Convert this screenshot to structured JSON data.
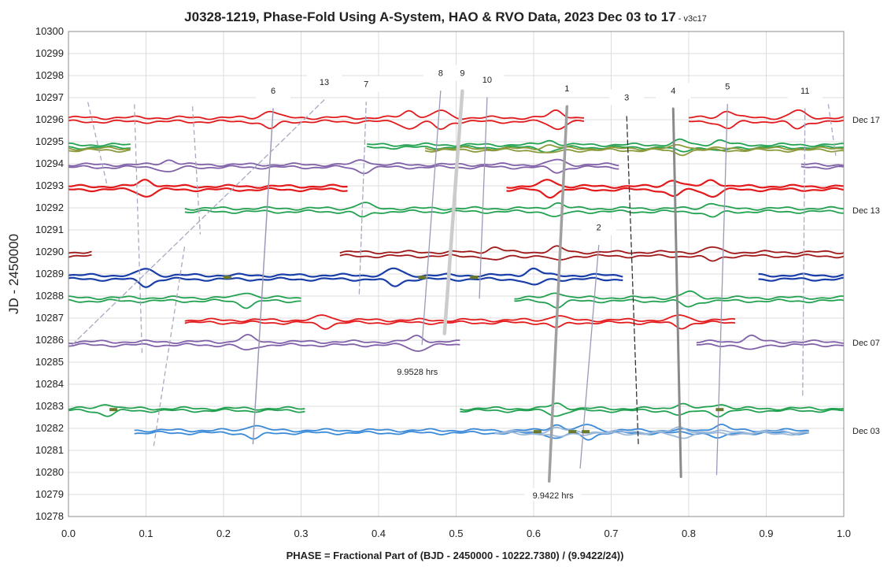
{
  "chart_data": {
    "type": "line",
    "title": "J0328-1219, Phase-Fold Using A-System, HAO & RVO Data, 2023 Dec 03 to 17",
    "title_suffix": " - v3c17",
    "xlabel": "PHASE = Fractional Part of (BJD - 2450000 - 10222.7380) / (9.9422/24))",
    "ylabel": "JD - 2450000",
    "xlim": [
      0.0,
      1.0
    ],
    "ylim": [
      10278,
      10300
    ],
    "x_ticks": [
      "0.0",
      "0.1",
      "0.2",
      "0.3",
      "0.4",
      "0.5",
      "0.6",
      "0.7",
      "0.8",
      "0.9",
      "1.0"
    ],
    "y_ticks": [
      "10278",
      "10279",
      "10280",
      "10281",
      "10282",
      "10283",
      "10284",
      "10285",
      "10286",
      "10287",
      "10288",
      "10289",
      "10290",
      "10291",
      "10292",
      "10293",
      "10294",
      "10295",
      "10296",
      "10297",
      "10298",
      "10299",
      "10300"
    ],
    "grid": true,
    "night_labels": [
      {
        "text": "Dec 17",
        "y": 10296
      },
      {
        "text": "Dec 13",
        "y": 10291.9
      },
      {
        "text": "Dec 07",
        "y": 10285.9
      },
      {
        "text": "Dec 03",
        "y": 10281.9
      }
    ],
    "period_labels": [
      {
        "text": "9.9528 hrs",
        "x": 0.45,
        "y": 10284.5
      },
      {
        "text": "9.9422 hrs",
        "x": 0.625,
        "y": 10278.9
      }
    ],
    "traces": [
      {
        "y": 10296.0,
        "color": "#e31a1c",
        "w": 1.8,
        "seg": [
          [
            0.0,
            0.655
          ],
          [
            0.65,
            0.665
          ],
          [
            0.8,
            1.0
          ]
        ],
        "amp": 0.32,
        "dips": [
          0.26,
          0.44,
          0.48,
          0.63,
          0.85,
          0.94
        ],
        "split": 0.18
      },
      {
        "y": 10294.8,
        "color": "#22a150",
        "w": 1.8,
        "seg": [
          [
            0.0,
            0.08
          ],
          [
            0.385,
            1.0
          ]
        ],
        "amp": 0.2,
        "dips": [
          0.62,
          0.79,
          0.84
        ],
        "split": 0.12
      },
      {
        "y": 10294.65,
        "color": "#8a9a3a",
        "w": 1.8,
        "seg": [
          [
            0.0,
            0.08
          ],
          [
            0.46,
            1.0
          ]
        ],
        "amp": 0.16,
        "dips": [
          0.62,
          0.79
        ],
        "split": 0.08
      },
      {
        "y": 10293.9,
        "color": "#8060a8",
        "w": 1.8,
        "seg": [
          [
            0.0,
            0.71
          ],
          [
            0.945,
            1.0
          ]
        ],
        "amp": 0.22,
        "dips": [
          0.13,
          0.38,
          0.63
        ],
        "split": 0.12
      },
      {
        "y": 10292.9,
        "color": "#e31a1c",
        "w": 2.2,
        "seg": [
          [
            0.0,
            0.36
          ],
          [
            0.565,
            1.0
          ]
        ],
        "amp": 0.3,
        "dips": [
          0.1,
          0.62,
          0.78,
          0.83
        ],
        "split": 0.15
      },
      {
        "y": 10291.9,
        "color": "#22a150",
        "w": 1.8,
        "seg": [
          [
            0.15,
            1.0
          ]
        ],
        "amp": 0.25,
        "dips": [
          0.38,
          0.63,
          0.83
        ],
        "split": 0.15
      },
      {
        "y": 10289.9,
        "color": "#a01818",
        "w": 1.8,
        "seg": [
          [
            0.0,
            0.03
          ],
          [
            0.35,
            1.0
          ]
        ],
        "amp": 0.22,
        "dips": [
          0.55,
          0.63,
          0.83
        ],
        "split": 0.18
      },
      {
        "y": 10288.85,
        "color": "#1a3ea8",
        "w": 2.2,
        "seg": [
          [
            0.0,
            0.715
          ],
          [
            0.89,
            1.0
          ]
        ],
        "amp": 0.3,
        "dips": [
          0.1,
          0.42,
          0.6
        ],
        "split": 0.18
      },
      {
        "y": 10287.85,
        "color": "#22a150",
        "w": 1.8,
        "seg": [
          [
            0.0,
            0.3
          ],
          [
            0.575,
            1.0
          ]
        ],
        "amp": 0.26,
        "dips": [
          0.23,
          0.63,
          0.8
        ],
        "split": 0.15
      },
      {
        "y": 10286.85,
        "color": "#e31a1c",
        "w": 1.8,
        "seg": [
          [
            0.15,
            0.86
          ]
        ],
        "amp": 0.22,
        "dips": [
          0.33,
          0.63,
          0.79
        ],
        "split": 0.12
      },
      {
        "y": 10285.85,
        "color": "#8060a8",
        "w": 1.8,
        "seg": [
          [
            0.0,
            0.505
          ],
          [
            0.81,
            1.0
          ]
        ],
        "amp": 0.26,
        "dips": [
          0.23,
          0.45,
          0.88
        ],
        "split": 0.15
      },
      {
        "y": 10282.85,
        "color": "#22a150",
        "w": 1.8,
        "seg": [
          [
            0.0,
            0.305
          ],
          [
            0.505,
            1.0
          ]
        ],
        "amp": 0.22,
        "dips": [
          0.05,
          0.63,
          0.79,
          0.84
        ],
        "split": 0.1
      },
      {
        "y": 10281.85,
        "color": "#3a8ad8",
        "w": 1.8,
        "seg": [
          [
            0.085,
            0.955
          ]
        ],
        "amp": 0.26,
        "dips": [
          0.24,
          0.63,
          0.67,
          0.84
        ],
        "split": 0.12
      },
      {
        "y": 10281.8,
        "color": "#9cb8d8",
        "w": 1.8,
        "seg": [
          [
            0.55,
            0.955
          ]
        ],
        "amp": 0.18,
        "dips": [
          0.63,
          0.79
        ],
        "split": 0.08
      }
    ],
    "drift_lines": [
      {
        "label": "1",
        "points": [
          [
            0.62,
            10279.6
          ],
          [
            0.643,
            10296.6
          ]
        ],
        "color": "#a0a0a0",
        "dash": false,
        "w": 3.5
      },
      {
        "label": "2",
        "points": [
          [
            0.66,
            10280.2
          ],
          [
            0.684,
            10290.3
          ]
        ],
        "color": "#9a9ab8",
        "dash": false,
        "w": 1.3
      },
      {
        "label": "3",
        "points": [
          [
            0.735,
            10281.3
          ],
          [
            0.72,
            10296.2
          ]
        ],
        "color": "#333333",
        "dash": true,
        "w": 1.3
      },
      {
        "label": "4",
        "points": [
          [
            0.79,
            10279.8
          ],
          [
            0.78,
            10296.5
          ]
        ],
        "color": "#8a8a8a",
        "dash": false,
        "w": 3.0
      },
      {
        "label": "5",
        "points": [
          [
            0.836,
            10279.9
          ],
          [
            0.85,
            10296.7
          ]
        ],
        "color": "#9a9ab8",
        "dash": false,
        "w": 1.3
      },
      {
        "label": "6",
        "points": [
          [
            0.238,
            10281.3
          ],
          [
            0.264,
            10296.5
          ]
        ],
        "color": "#9a9ab8",
        "dash": false,
        "w": 1.5
      },
      {
        "label": "7",
        "points": [
          [
            0.375,
            10288.1
          ],
          [
            0.384,
            10296.8
          ]
        ],
        "color": "#a8a8c0",
        "dash": true,
        "w": 1.3
      },
      {
        "label": "8",
        "points": [
          [
            0.456,
            10285.8
          ],
          [
            0.48,
            10297.3
          ]
        ],
        "color": "#9a9ab8",
        "dash": false,
        "w": 1.3
      },
      {
        "label": "9",
        "points": [
          [
            0.485,
            10286.3
          ],
          [
            0.508,
            10297.3
          ]
        ],
        "color": "#cccccc",
        "dash": false,
        "w": 4.5
      },
      {
        "label": "10",
        "points": [
          [
            0.53,
            10287.9
          ],
          [
            0.54,
            10297.0
          ]
        ],
        "color": "#9a9ab8",
        "dash": false,
        "w": 1.3
      },
      {
        "label": "11",
        "points": [
          [
            0.947,
            10283.5
          ],
          [
            0.95,
            10296.5
          ]
        ],
        "color": "#a8a8c0",
        "dash": true,
        "w": 1.3
      },
      {
        "label": "13",
        "points": [
          [
            0.005,
            10285.8
          ],
          [
            0.33,
            10296.9
          ]
        ],
        "color": "#a8a8c0",
        "dash": true,
        "w": 1.3
      }
    ],
    "extra_dashed": [
      {
        "points": [
          [
            0.025,
            10296.8
          ],
          [
            0.05,
            10293
          ]
        ],
        "color": "#a8a8c0"
      },
      {
        "points": [
          [
            0.085,
            10296.7
          ],
          [
            0.095,
            10285.3
          ]
        ],
        "color": "#a8a8c0"
      },
      {
        "points": [
          [
            0.16,
            10296.6
          ],
          [
            0.17,
            10290.8
          ]
        ],
        "color": "#a8a8c0"
      },
      {
        "points": [
          [
            0.11,
            10281.2
          ],
          [
            0.15,
            10290.3
          ]
        ],
        "color": "#a8a8c0"
      },
      {
        "points": [
          [
            0.98,
            10296.7
          ],
          [
            0.99,
            10294.3
          ]
        ],
        "color": "#a8a8c0"
      }
    ],
    "markers": [
      {
        "x": 0.058,
        "y": 10282.85
      },
      {
        "x": 0.205,
        "y": 10288.85
      },
      {
        "x": 0.456,
        "y": 10288.85
      },
      {
        "x": 0.523,
        "y": 10288.85
      },
      {
        "x": 0.605,
        "y": 10281.85
      },
      {
        "x": 0.65,
        "y": 10281.85
      },
      {
        "x": 0.667,
        "y": 10281.85
      },
      {
        "x": 0.84,
        "y": 10282.85
      }
    ]
  }
}
